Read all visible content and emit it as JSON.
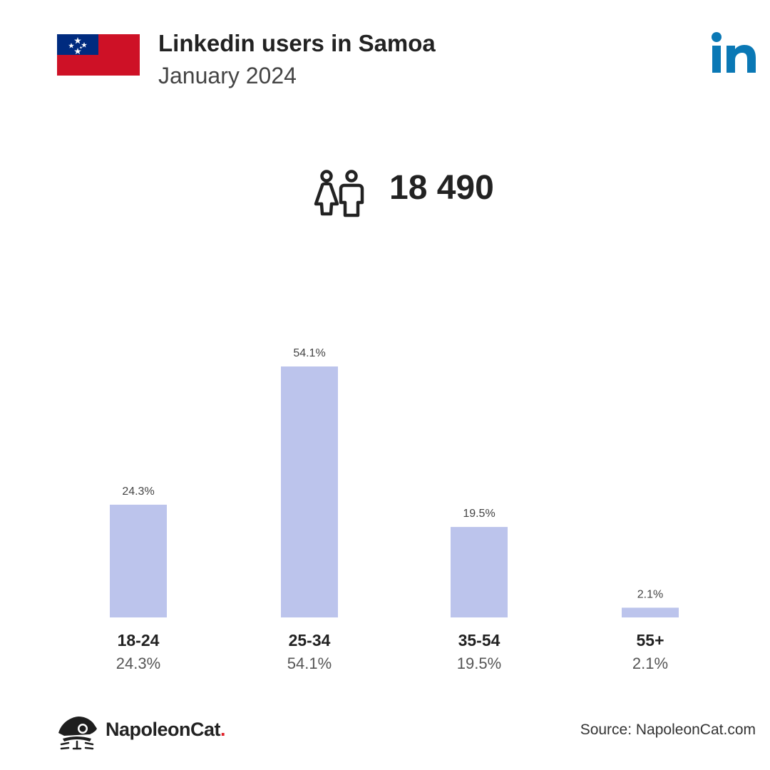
{
  "header": {
    "title": "Linkedin users in Samoa",
    "subtitle": "January 2024",
    "flag_icon": "samoa-flag-icon",
    "brand_icon": "linkedin-logo-icon"
  },
  "summary": {
    "total_users": "18 490",
    "icon": "users-icon"
  },
  "chart_data": {
    "type": "bar",
    "categories": [
      "18-24",
      "25-34",
      "35-54",
      "55+"
    ],
    "values": [
      24.3,
      54.1,
      19.5,
      2.1
    ],
    "value_labels": [
      "24.3%",
      "54.1%",
      "19.5%",
      "2.1%"
    ],
    "ylim": [
      0,
      54.1
    ],
    "grid": false,
    "bar_color": "#bcc4ec"
  },
  "footer": {
    "brand_name": "NapoleonCat",
    "brand_dot": ".",
    "source": "Source: NapoleonCat.com"
  },
  "colors": {
    "flag_red": "#ce1126",
    "flag_blue": "#002b7f",
    "linkedin_blue": "#0a78b5",
    "brand_dot_red": "#e0212a"
  }
}
